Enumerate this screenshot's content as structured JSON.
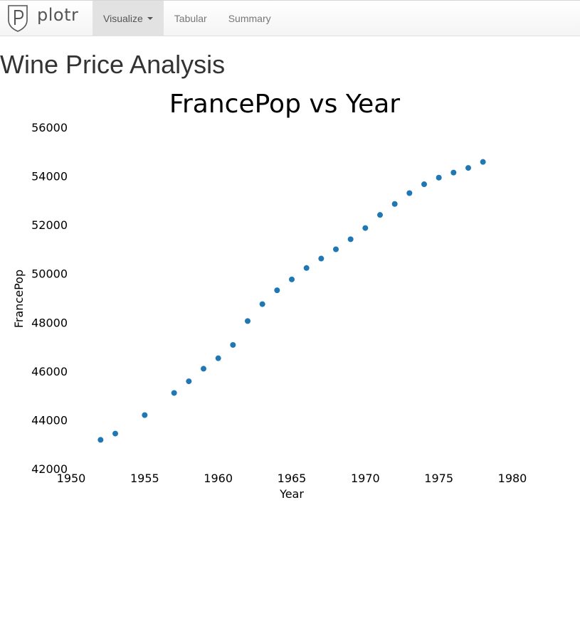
{
  "app": {
    "brand_name": "plotr"
  },
  "nav": {
    "items": [
      {
        "label": "Visualize",
        "active": true,
        "has_caret": true
      },
      {
        "label": "Tabular",
        "active": false
      },
      {
        "label": "Summary",
        "active": false
      }
    ]
  },
  "page": {
    "title": "Wine Price Analysis"
  },
  "colors": {
    "marker": "#1f77b4",
    "active_tab": "#e2e2e2"
  },
  "chart_data": {
    "type": "scatter",
    "title": "FrancePop vs Year",
    "xlabel": "Year",
    "ylabel": "FrancePop",
    "xlim": [
      1950,
      1980
    ],
    "ylim": [
      42000,
      56000
    ],
    "xticks": [
      1950,
      1955,
      1960,
      1965,
      1970,
      1975,
      1980
    ],
    "yticks": [
      42000,
      44000,
      46000,
      48000,
      50000,
      52000,
      54000,
      56000
    ],
    "grid": false,
    "x": [
      1952,
      1953,
      1955,
      1957,
      1958,
      1959,
      1960,
      1961,
      1962,
      1963,
      1964,
      1965,
      1966,
      1967,
      1968,
      1969,
      1970,
      1971,
      1972,
      1973,
      1974,
      1975,
      1976,
      1977,
      1978
    ],
    "y": [
      43184,
      43441,
      44198,
      45107,
      45585,
      46100,
      46531,
      47076,
      48056,
      48750,
      49317,
      49763,
      50231,
      50618,
      50998,
      51411,
      51871,
      52408,
      52857,
      53302,
      53665,
      53936,
      54144,
      54335,
      54580
    ]
  }
}
